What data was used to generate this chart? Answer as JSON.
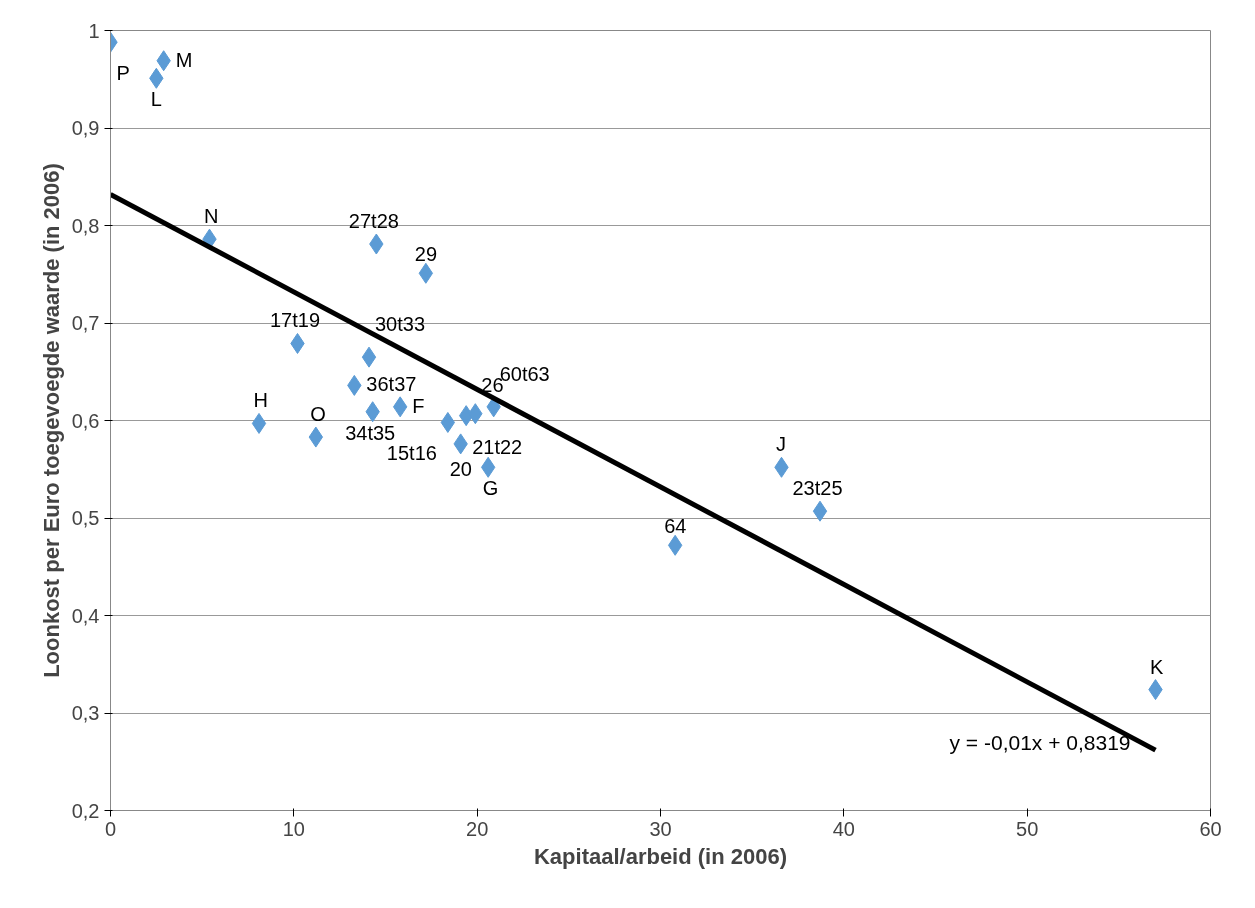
{
  "chart_data": {
    "type": "scatter",
    "xlabel": "Kapitaal/arbeid (in 2006)",
    "ylabel": "Loonkost per Euro toegevoegde waarde (in 2006)",
    "xlim": [
      0,
      60
    ],
    "ylim": [
      0.2,
      1
    ],
    "xticks": [
      0,
      10,
      20,
      30,
      40,
      50,
      60
    ],
    "yticks": [
      {
        "value": 0.2,
        "label": "0,2"
      },
      {
        "value": 0.3,
        "label": "0,3"
      },
      {
        "value": 0.4,
        "label": "0,4"
      },
      {
        "value": 0.5,
        "label": "0,5"
      },
      {
        "value": 0.6,
        "label": "0,6"
      },
      {
        "value": 0.7,
        "label": "0,7"
      },
      {
        "value": 0.8,
        "label": "0,8"
      },
      {
        "value": 0.9,
        "label": "0,9"
      },
      1
    ],
    "grid": "y",
    "series": [
      {
        "marker": "diamond",
        "color": "#5b9bd5",
        "x": [
          0,
          2.9,
          2.5,
          5.4,
          14.5,
          17.2,
          10.2,
          14.1,
          13.3,
          8.1,
          11.2,
          14.3,
          15.8,
          18.4,
          19.4,
          19.9,
          20.9,
          19.1,
          20.6,
          30.8,
          36.6,
          38.7,
          57.0
        ],
        "values": [
          0.988,
          0.969,
          0.951,
          0.786,
          0.781,
          0.751,
          0.679,
          0.665,
          0.636,
          0.597,
          0.583,
          0.609,
          0.614,
          0.598,
          0.605,
          0.607,
          0.614,
          0.576,
          0.552,
          0.472,
          0.552,
          0.507,
          0.324
        ]
      },
      {
        "type": "line",
        "color": "#000000",
        "x": [
          0,
          57.0
        ],
        "values": [
          0.8319,
          0.2619
        ]
      }
    ],
    "annotations": [
      {
        "text": "P",
        "x": 0,
        "y": 0.988
      },
      {
        "text": "M",
        "x": 2.9,
        "y": 0.969
      },
      {
        "text": "L",
        "x": 2.5,
        "y": 0.951
      },
      {
        "text": "N",
        "x": 5.4,
        "y": 0.786
      },
      {
        "text": "27t28",
        "x": 14.5,
        "y": 0.781
      },
      {
        "text": "29",
        "x": 17.2,
        "y": 0.751
      },
      {
        "text": "17t19",
        "x": 10.2,
        "y": 0.679
      },
      {
        "text": "30t33",
        "x": 14.1,
        "y": 0.665
      },
      {
        "text": "36t37",
        "x": 13.3,
        "y": 0.636
      },
      {
        "text": "H",
        "x": 8.1,
        "y": 0.597
      },
      {
        "text": "O",
        "x": 11.2,
        "y": 0.583
      },
      {
        "text": "34t35",
        "x": 14.3,
        "y": 0.609
      },
      {
        "text": "F",
        "x": 15.8,
        "y": 0.614
      },
      {
        "text": "15t16",
        "x": 18.4,
        "y": 0.598
      },
      {
        "text": "21t22",
        "x": 19.4,
        "y": 0.605
      },
      {
        "text": "26",
        "x": 19.9,
        "y": 0.607
      },
      {
        "text": "60t63",
        "x": 20.9,
        "y": 0.614
      },
      {
        "text": "20",
        "x": 19.1,
        "y": 0.576
      },
      {
        "text": "G",
        "x": 20.6,
        "y": 0.552
      },
      {
        "text": "64",
        "x": 30.8,
        "y": 0.472
      },
      {
        "text": "J",
        "x": 36.6,
        "y": 0.552
      },
      {
        "text": "23t25",
        "x": 38.7,
        "y": 0.507
      },
      {
        "text": "K",
        "x": 57.0,
        "y": 0.324
      },
      {
        "text": "y = -0,01x + 0,8319",
        "x": 57.0,
        "y": 0.2619
      }
    ]
  }
}
